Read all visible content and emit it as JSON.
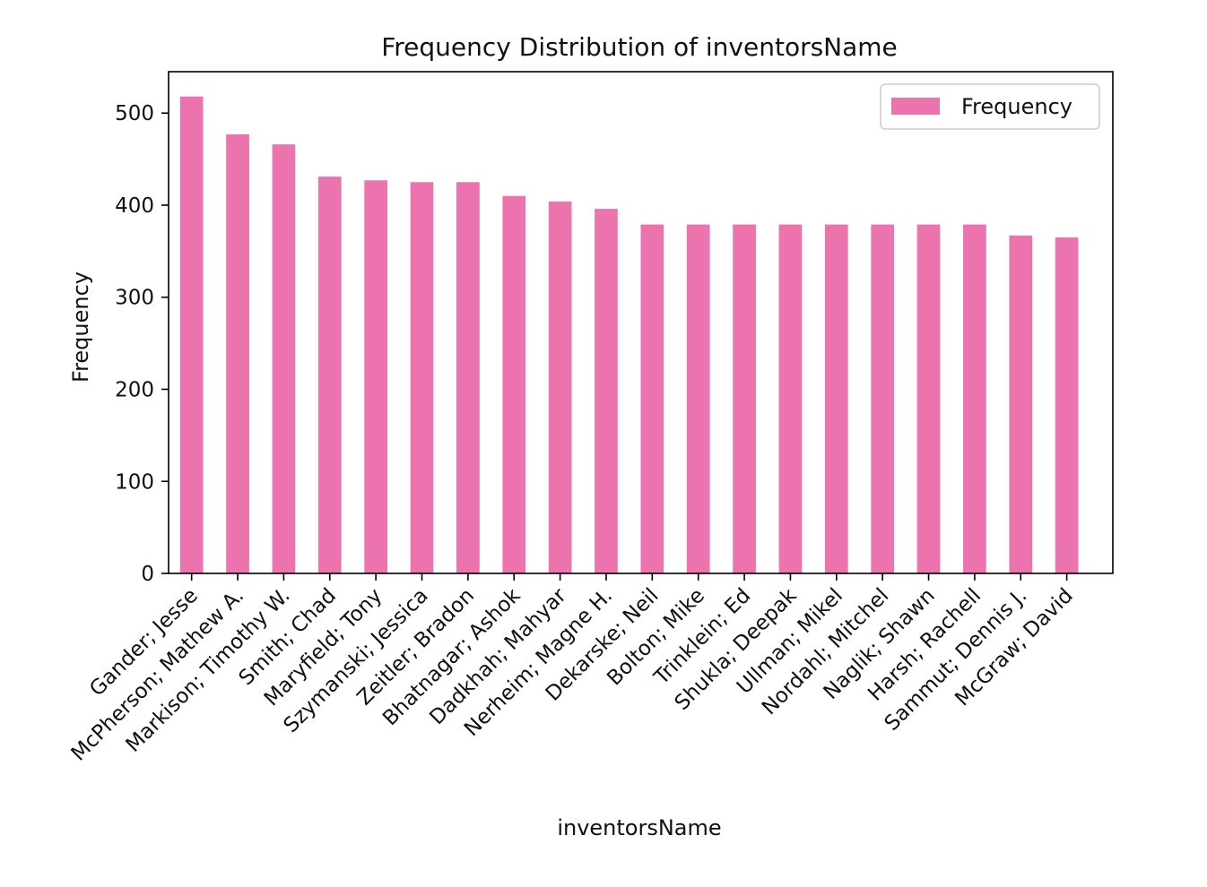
{
  "chart_data": {
    "type": "bar",
    "title": "Frequency Distribution of inventorsName",
    "xlabel": "inventorsName",
    "ylabel": "Frequency",
    "categories": [
      "Gander; Jesse",
      "McPherson; Mathew A.",
      "Markison; Timothy W.",
      "Smith; Chad",
      "Maryfield; Tony",
      "Szymanski; Jessica",
      "Zeitler; Bradon",
      "Bhatnagar; Ashok",
      "Dadkhah; Mahyar",
      "Nerheim; Magne H.",
      "Dekarske; Neil",
      "Bolton; Mike",
      "Trinklein; Ed",
      "Shukla; Deepak",
      "Ullman; Mikel",
      "Nordahl; Mitchel",
      "Naglik; Shawn",
      "Harsh; Rachell",
      "Sammut; Dennis J.",
      "McGraw; David"
    ],
    "series": [
      {
        "name": "Frequency",
        "color": "#ec73ae",
        "values": [
          518,
          477,
          466,
          431,
          427,
          425,
          425,
          410,
          404,
          396,
          379,
          379,
          379,
          379,
          379,
          379,
          379,
          379,
          367,
          365
        ]
      }
    ],
    "ylim": [
      0,
      545
    ],
    "yticks": [
      0,
      100,
      200,
      300,
      400,
      500
    ],
    "grid": false,
    "legend": "top-right"
  }
}
